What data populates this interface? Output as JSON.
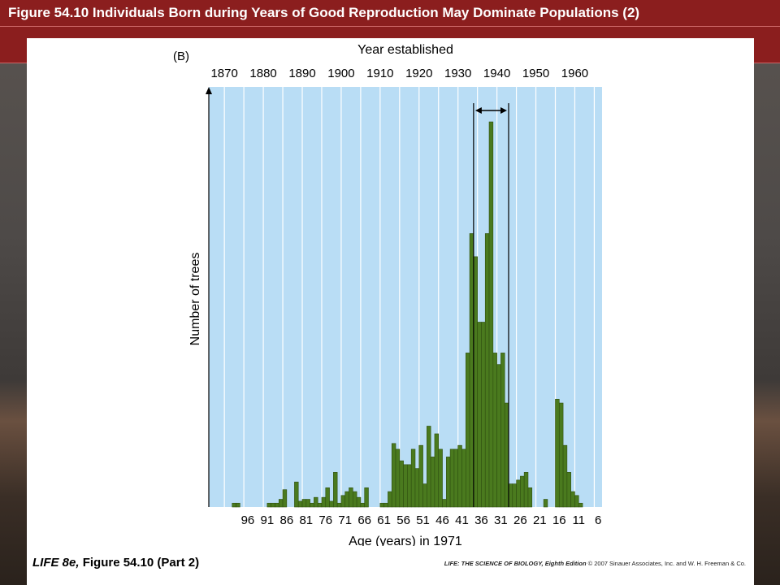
{
  "slide": {
    "title": "Figure 54.10 Individuals Born during Years of Good Reproduction May Dominate Populations (2)"
  },
  "figure": {
    "caption_italic": "LIFE 8e,",
    "caption_rest": " Figure 54.10 (Part 2)",
    "credit_book": "LIFE: THE SCIENCE OF BIOLOGY, Eighth Edition",
    "credit_rest": " © 2007 Sinauer Associates, Inc. and W. H. Freeman & Co."
  },
  "colors": {
    "slide_title_bg": "#8b1e1e",
    "plot_bg": "#b9ddf5",
    "bar_fill": "#4a7a1e",
    "bar_edge": "#2f4f10"
  },
  "chart_data": {
    "type": "bar",
    "panel_label": "(B)",
    "top_axis_label": "Year established",
    "xlabel": "Age (years) in 1971",
    "ylabel": "Number of trees",
    "top_ticks": [
      "1870",
      "1880",
      "1890",
      "1900",
      "1910",
      "1920",
      "1930",
      "1940",
      "1950",
      "1960"
    ],
    "bottom_ticks": [
      "96",
      "91",
      "86",
      "81",
      "76",
      "71",
      "66",
      "61",
      "56",
      "51",
      "46",
      "41",
      "36",
      "31",
      "26",
      "21",
      "16",
      "11",
      "6"
    ],
    "xlim_year": [
      1866,
      1967
    ],
    "year_axis_direction": "ascending left to right (age descending)",
    "grid": "vertical lines every 5 years",
    "highlight": {
      "from_year": 1934,
      "to_year": 1943,
      "marker": "double-headed arrow with vertical boundary lines"
    },
    "y_axis": "unlabeled counts (relative)",
    "ylim": [
      0,
      100
    ],
    "bins": [
      {
        "year": 1871,
        "value": 0
      },
      {
        "year": 1872,
        "value": 1
      },
      {
        "year": 1873,
        "value": 1
      },
      {
        "year": 1874,
        "value": 0
      },
      {
        "year": 1875,
        "value": 0
      },
      {
        "year": 1876,
        "value": 0
      },
      {
        "year": 1877,
        "value": 0
      },
      {
        "year": 1878,
        "value": 0
      },
      {
        "year": 1879,
        "value": 0
      },
      {
        "year": 1880,
        "value": 0
      },
      {
        "year": 1881,
        "value": 1
      },
      {
        "year": 1882,
        "value": 1
      },
      {
        "year": 1883,
        "value": 1
      },
      {
        "year": 1884,
        "value": 2
      },
      {
        "year": 1885,
        "value": 4.5
      },
      {
        "year": 1886,
        "value": 0
      },
      {
        "year": 1887,
        "value": 0
      },
      {
        "year": 1888,
        "value": 6.5
      },
      {
        "year": 1889,
        "value": 1.5
      },
      {
        "year": 1890,
        "value": 2
      },
      {
        "year": 1891,
        "value": 2
      },
      {
        "year": 1892,
        "value": 1
      },
      {
        "year": 1893,
        "value": 2.5
      },
      {
        "year": 1894,
        "value": 1
      },
      {
        "year": 1895,
        "value": 2.5
      },
      {
        "year": 1896,
        "value": 5
      },
      {
        "year": 1897,
        "value": 1.5
      },
      {
        "year": 1898,
        "value": 9
      },
      {
        "year": 1899,
        "value": 1
      },
      {
        "year": 1900,
        "value": 3
      },
      {
        "year": 1901,
        "value": 4
      },
      {
        "year": 1902,
        "value": 5
      },
      {
        "year": 1903,
        "value": 4
      },
      {
        "year": 1904,
        "value": 2.5
      },
      {
        "year": 1905,
        "value": 1
      },
      {
        "year": 1906,
        "value": 5
      },
      {
        "year": 1907,
        "value": 0
      },
      {
        "year": 1908,
        "value": 0
      },
      {
        "year": 1909,
        "value": 0
      },
      {
        "year": 1910,
        "value": 1
      },
      {
        "year": 1911,
        "value": 1
      },
      {
        "year": 1912,
        "value": 4
      },
      {
        "year": 1913,
        "value": 16.5
      },
      {
        "year": 1914,
        "value": 15
      },
      {
        "year": 1915,
        "value": 12
      },
      {
        "year": 1916,
        "value": 11
      },
      {
        "year": 1917,
        "value": 11
      },
      {
        "year": 1918,
        "value": 15
      },
      {
        "year": 1919,
        "value": 10
      },
      {
        "year": 1920,
        "value": 16
      },
      {
        "year": 1921,
        "value": 6
      },
      {
        "year": 1922,
        "value": 21
      },
      {
        "year": 1923,
        "value": 13
      },
      {
        "year": 1924,
        "value": 19
      },
      {
        "year": 1925,
        "value": 15
      },
      {
        "year": 1926,
        "value": 2
      },
      {
        "year": 1927,
        "value": 13
      },
      {
        "year": 1928,
        "value": 15
      },
      {
        "year": 1929,
        "value": 15
      },
      {
        "year": 1930,
        "value": 16
      },
      {
        "year": 1931,
        "value": 15
      },
      {
        "year": 1932,
        "value": 40
      },
      {
        "year": 1933,
        "value": 71
      },
      {
        "year": 1934,
        "value": 65
      },
      {
        "year": 1935,
        "value": 48
      },
      {
        "year": 1936,
        "value": 48
      },
      {
        "year": 1937,
        "value": 71
      },
      {
        "year": 1938,
        "value": 100
      },
      {
        "year": 1939,
        "value": 40
      },
      {
        "year": 1940,
        "value": 37
      },
      {
        "year": 1941,
        "value": 40
      },
      {
        "year": 1942,
        "value": 27
      },
      {
        "year": 1943,
        "value": 6
      },
      {
        "year": 1944,
        "value": 6
      },
      {
        "year": 1945,
        "value": 7
      },
      {
        "year": 1946,
        "value": 8
      },
      {
        "year": 1947,
        "value": 9
      },
      {
        "year": 1948,
        "value": 5
      },
      {
        "year": 1949,
        "value": 0
      },
      {
        "year": 1950,
        "value": 0
      },
      {
        "year": 1951,
        "value": 0
      },
      {
        "year": 1952,
        "value": 2
      },
      {
        "year": 1953,
        "value": 0
      },
      {
        "year": 1954,
        "value": 0
      },
      {
        "year": 1955,
        "value": 28
      },
      {
        "year": 1956,
        "value": 27
      },
      {
        "year": 1957,
        "value": 16
      },
      {
        "year": 1958,
        "value": 9
      },
      {
        "year": 1959,
        "value": 4
      },
      {
        "year": 1960,
        "value": 3
      },
      {
        "year": 1961,
        "value": 1
      }
    ]
  }
}
